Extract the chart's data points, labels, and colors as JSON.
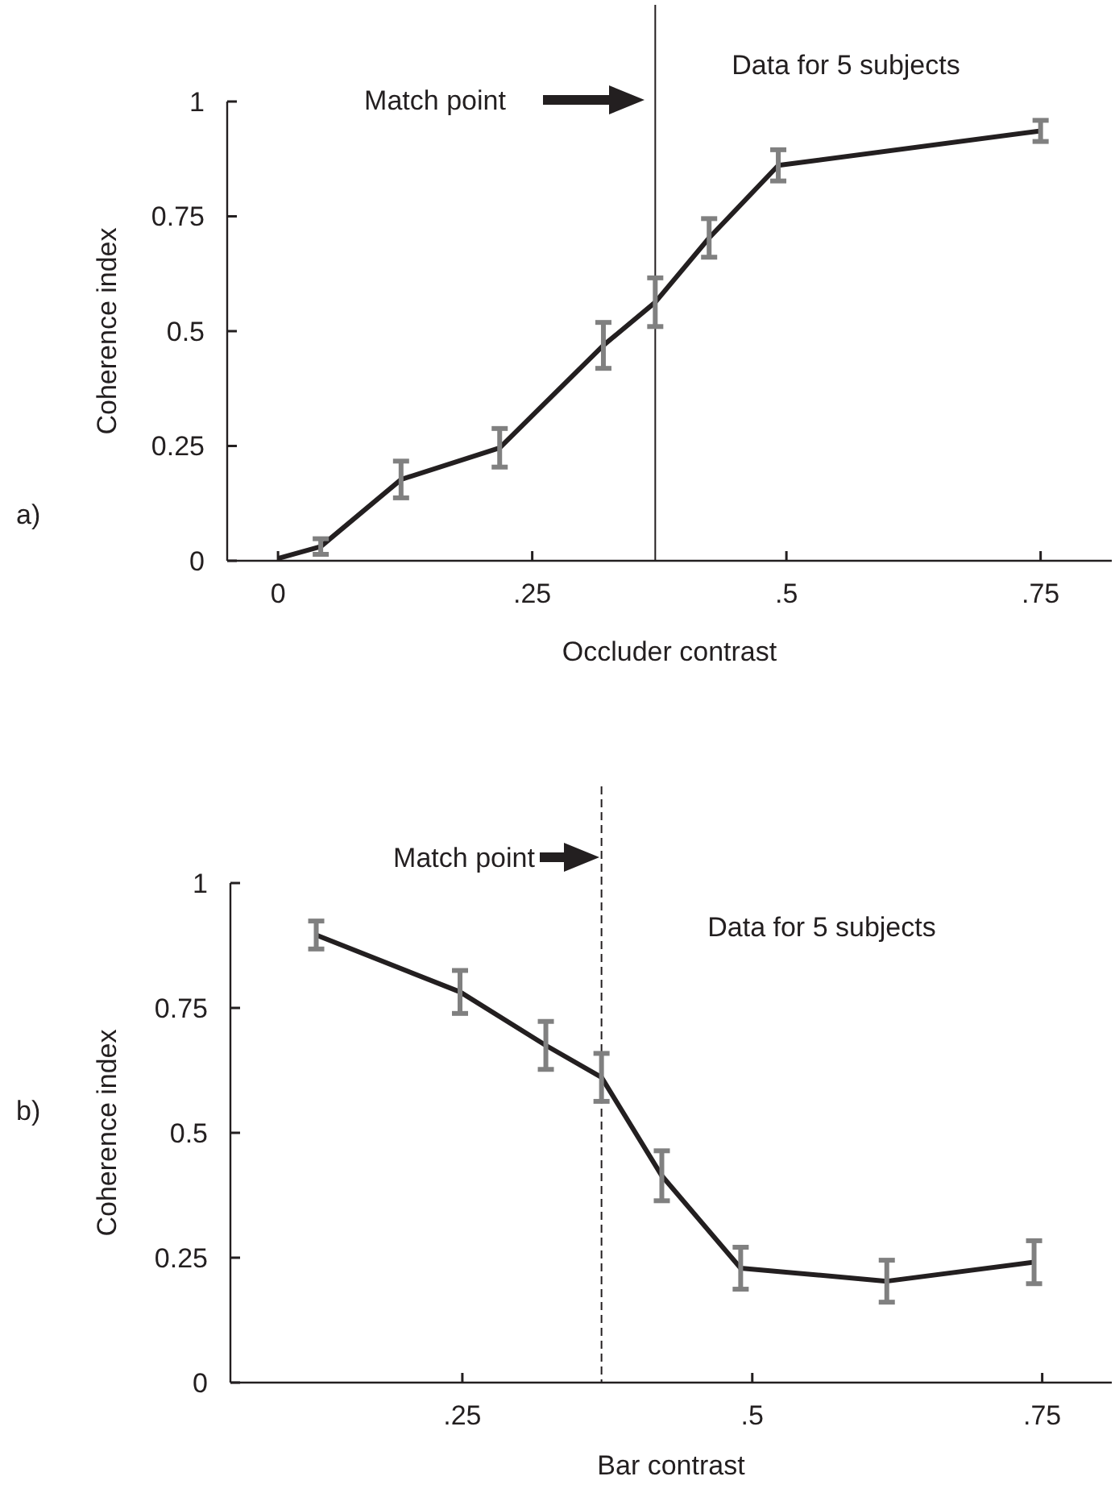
{
  "chart_data": [
    {
      "type": "line",
      "xlabel": "Occluder contrast",
      "ylabel": "Coherence index",
      "xlim": [
        -0.05,
        0.82
      ],
      "ylim": [
        0,
        1
      ],
      "xticks": [
        0,
        {
          "value": 0.25,
          "label": ".25"
        },
        {
          "value": 0.5,
          "label": ".5"
        },
        {
          "value": 0.75,
          "label": ".75"
        }
      ],
      "yticks": [
        0,
        0.25,
        0.5,
        0.75,
        1
      ],
      "grid": false,
      "marker": "none",
      "line_style": "solid",
      "series": [
        {
          "color": "#231f20",
          "x": [
            0,
            0.042,
            0.121,
            0.218,
            0.32,
            0.371,
            0.424,
            0.492,
            0.75
          ],
          "values": [
            0.005,
            0.031,
            0.177,
            0.246,
            0.469,
            0.563,
            0.703,
            0.861,
            0.936
          ],
          "errors": [
            null,
            0.017,
            0.04,
            0.042,
            0.05,
            0.053,
            0.042,
            0.034,
            0.023
          ]
        }
      ],
      "ref_lines": [
        {
          "axis": "x",
          "value": 0.371,
          "color": "#231f20",
          "line_style": "solid"
        }
      ],
      "annotations": [
        "a)",
        "Match point",
        "Data for 5 subjects"
      ]
    },
    {
      "type": "line",
      "xlabel": "Bar contrast",
      "ylabel": "Coherence index",
      "xlim": [
        0.05,
        0.81
      ],
      "ylim": [
        0,
        1
      ],
      "xticks": [
        {
          "value": 0.25,
          "label": ".25"
        },
        {
          "value": 0.5,
          "label": ".5"
        },
        {
          "value": 0.75,
          "label": ".75"
        }
      ],
      "yticks": [
        0,
        0.25,
        0.5,
        0.75,
        1
      ],
      "grid": false,
      "marker": "none",
      "line_style": "solid",
      "series": [
        {
          "color": "#231f20",
          "x": [
            0.124,
            0.248,
            0.322,
            0.37,
            0.422,
            0.49,
            0.616,
            0.743
          ],
          "values": [
            0.896,
            0.782,
            0.675,
            0.611,
            0.414,
            0.229,
            0.203,
            0.241
          ],
          "errors": [
            0.028,
            0.043,
            0.048,
            0.048,
            0.05,
            0.042,
            0.042,
            0.043
          ]
        }
      ],
      "ref_lines": [
        {
          "axis": "x",
          "value": 0.37,
          "color": "#231f20",
          "line_style": "dashed"
        }
      ],
      "annotations": [
        "b)",
        "Match point",
        "Data for 5 subjects"
      ]
    }
  ]
}
